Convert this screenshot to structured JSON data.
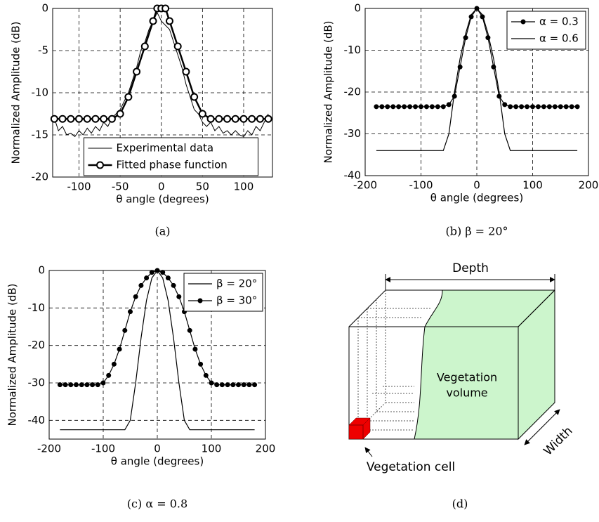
{
  "chart_data": [
    {
      "type": "line",
      "caption": "(a)",
      "xlabel": "θ angle (degrees)",
      "ylabel": "Normalized Amplitude (dB)",
      "xlim": [
        -132,
        135
      ],
      "xticks": [
        -100,
        -50,
        0,
        50,
        100
      ],
      "ylim": [
        -20,
        0
      ],
      "yticks": [
        0,
        -5,
        -10,
        -15,
        -20
      ],
      "grid": true,
      "legend": "lower center",
      "series": [
        {
          "name": "Experimental data",
          "color": "#000000",
          "linewidth": 1,
          "marker": "none",
          "x": [
            -130,
            -125,
            -120,
            -115,
            -110,
            -105,
            -100,
            -95,
            -90,
            -85,
            -80,
            -75,
            -70,
            -65,
            -60,
            -55,
            -50,
            -45,
            -40,
            -35,
            -30,
            -25,
            -20,
            -15,
            -10,
            -5,
            0,
            5,
            10,
            15,
            20,
            25,
            30,
            35,
            40,
            45,
            50,
            55,
            60,
            65,
            70,
            75,
            80,
            85,
            90,
            95,
            100,
            105,
            110,
            115,
            120,
            125,
            130
          ],
          "values": [
            -13,
            -14.5,
            -14,
            -15,
            -14.8,
            -15.2,
            -14.5,
            -15,
            -14.2,
            -14.8,
            -14,
            -14.5,
            -13.5,
            -14,
            -13,
            -12.5,
            -12,
            -11,
            -10,
            -8.5,
            -7,
            -5,
            -4,
            -2.5,
            -1.5,
            -0.5,
            -1.5,
            -2,
            -2.5,
            -4,
            -5.5,
            -7,
            -9,
            -10.5,
            -12,
            -12.5,
            -13.5,
            -14,
            -13.5,
            -14.5,
            -14,
            -14.8,
            -14.5,
            -15,
            -14.5,
            -15,
            -15.2,
            -14.5,
            -15,
            -14,
            -14.5,
            -13.5,
            -12.5
          ]
        },
        {
          "name": "Fitted phase function",
          "color": "#000000",
          "linewidth": 2.5,
          "marker": "circle",
          "x": [
            -130,
            -120,
            -110,
            -100,
            -90,
            -80,
            -70,
            -60,
            -50,
            -40,
            -30,
            -20,
            -10,
            -5,
            0,
            5,
            10,
            20,
            30,
            40,
            50,
            60,
            70,
            80,
            90,
            100,
            110,
            120,
            130
          ],
          "values": [
            -13.1,
            -13.1,
            -13.1,
            -13.1,
            -13.1,
            -13.1,
            -13.1,
            -13.1,
            -12.5,
            -10.5,
            -7.5,
            -4.5,
            -1.5,
            0,
            0,
            0,
            -1.5,
            -4.5,
            -7.5,
            -10.5,
            -12.5,
            -13.1,
            -13.1,
            -13.1,
            -13.1,
            -13.1,
            -13.1,
            -13.1,
            -13.1
          ]
        }
      ]
    },
    {
      "type": "line",
      "caption": "(b) β = 20°",
      "xlabel": "θ angle (degrees)",
      "ylabel": "Normalized Amplitude (dB)",
      "xlim": [
        -200,
        200
      ],
      "xticks": [
        -200,
        -100,
        0,
        100,
        200
      ],
      "ylim": [
        -40,
        0
      ],
      "yticks": [
        0,
        -10,
        -20,
        -30,
        -40
      ],
      "grid": true,
      "legend": "upper right",
      "series": [
        {
          "name": "α = 0.3",
          "color": "#000000",
          "linewidth": 1.2,
          "marker": "circle",
          "x": [
            -180,
            -170,
            -160,
            -150,
            -140,
            -130,
            -120,
            -110,
            -100,
            -90,
            -80,
            -70,
            -60,
            -50,
            -40,
            -30,
            -20,
            -10,
            0,
            10,
            20,
            30,
            40,
            50,
            60,
            70,
            80,
            90,
            100,
            110,
            120,
            130,
            140,
            150,
            160,
            170,
            180
          ],
          "values": [
            -23.5,
            -23.5,
            -23.5,
            -23.5,
            -23.5,
            -23.5,
            -23.5,
            -23.5,
            -23.5,
            -23.5,
            -23.5,
            -23.5,
            -23.5,
            -23,
            -21,
            -14,
            -7,
            -2,
            0,
            -2,
            -7,
            -14,
            -21,
            -23,
            -23.5,
            -23.5,
            -23.5,
            -23.5,
            -23.5,
            -23.5,
            -23.5,
            -23.5,
            -23.5,
            -23.5,
            -23.5,
            -23.5,
            -23.5
          ]
        },
        {
          "name": "α = 0.6",
          "color": "#000000",
          "linewidth": 1.2,
          "marker": "none",
          "x": [
            -180,
            -60,
            -50,
            -40,
            -30,
            -20,
            -10,
            0,
            10,
            20,
            30,
            40,
            50,
            60,
            180
          ],
          "values": [
            -34,
            -34,
            -30,
            -20,
            -12,
            -6,
            -1.5,
            0,
            -1.5,
            -6,
            -12,
            -20,
            -30,
            -34,
            -34
          ]
        }
      ]
    },
    {
      "type": "line",
      "caption": "(c) α = 0.8",
      "xlabel": "θ angle (degrees)",
      "ylabel": "Normalized Amplitude (dB)",
      "xlim": [
        -200,
        200
      ],
      "xticks": [
        -200,
        -100,
        0,
        100,
        200
      ],
      "ylim": [
        -45,
        0
      ],
      "yticks": [
        0,
        -10,
        -20,
        -30,
        -40
      ],
      "grid": true,
      "legend": "upper right",
      "series": [
        {
          "name": "β = 20°",
          "color": "#000000",
          "linewidth": 1.2,
          "marker": "none",
          "x": [
            -180,
            -60,
            -50,
            -40,
            -30,
            -20,
            -10,
            0,
            10,
            20,
            30,
            40,
            50,
            60,
            180
          ],
          "values": [
            -42.5,
            -42.5,
            -40,
            -30,
            -18,
            -8,
            -2,
            0,
            -2,
            -8,
            -18,
            -30,
            -40,
            -42.5,
            -42.5
          ]
        },
        {
          "name": "β = 30°",
          "color": "#000000",
          "linewidth": 1.2,
          "marker": "circle",
          "x": [
            -180,
            -170,
            -160,
            -150,
            -140,
            -130,
            -120,
            -110,
            -100,
            -90,
            -80,
            -70,
            -60,
            -50,
            -40,
            -30,
            -20,
            -10,
            0,
            10,
            20,
            30,
            40,
            50,
            60,
            70,
            80,
            90,
            100,
            110,
            120,
            130,
            140,
            150,
            160,
            170,
            180
          ],
          "values": [
            -30.5,
            -30.5,
            -30.5,
            -30.5,
            -30.5,
            -30.5,
            -30.5,
            -30.5,
            -30,
            -28,
            -25,
            -21,
            -16,
            -11,
            -7,
            -4,
            -2,
            -0.5,
            0,
            -0.5,
            -2,
            -4,
            -7,
            -11,
            -16,
            -21,
            -25,
            -28,
            -30,
            -30.5,
            -30.5,
            -30.5,
            -30.5,
            -30.5,
            -30.5,
            -30.5,
            -30.5
          ]
        }
      ]
    }
  ],
  "diagram": {
    "depth": "Depth",
    "volume": [
      "Vegetation",
      "volume"
    ],
    "width": "Width",
    "cell": "Vegetation cell",
    "caption": "(d)"
  }
}
